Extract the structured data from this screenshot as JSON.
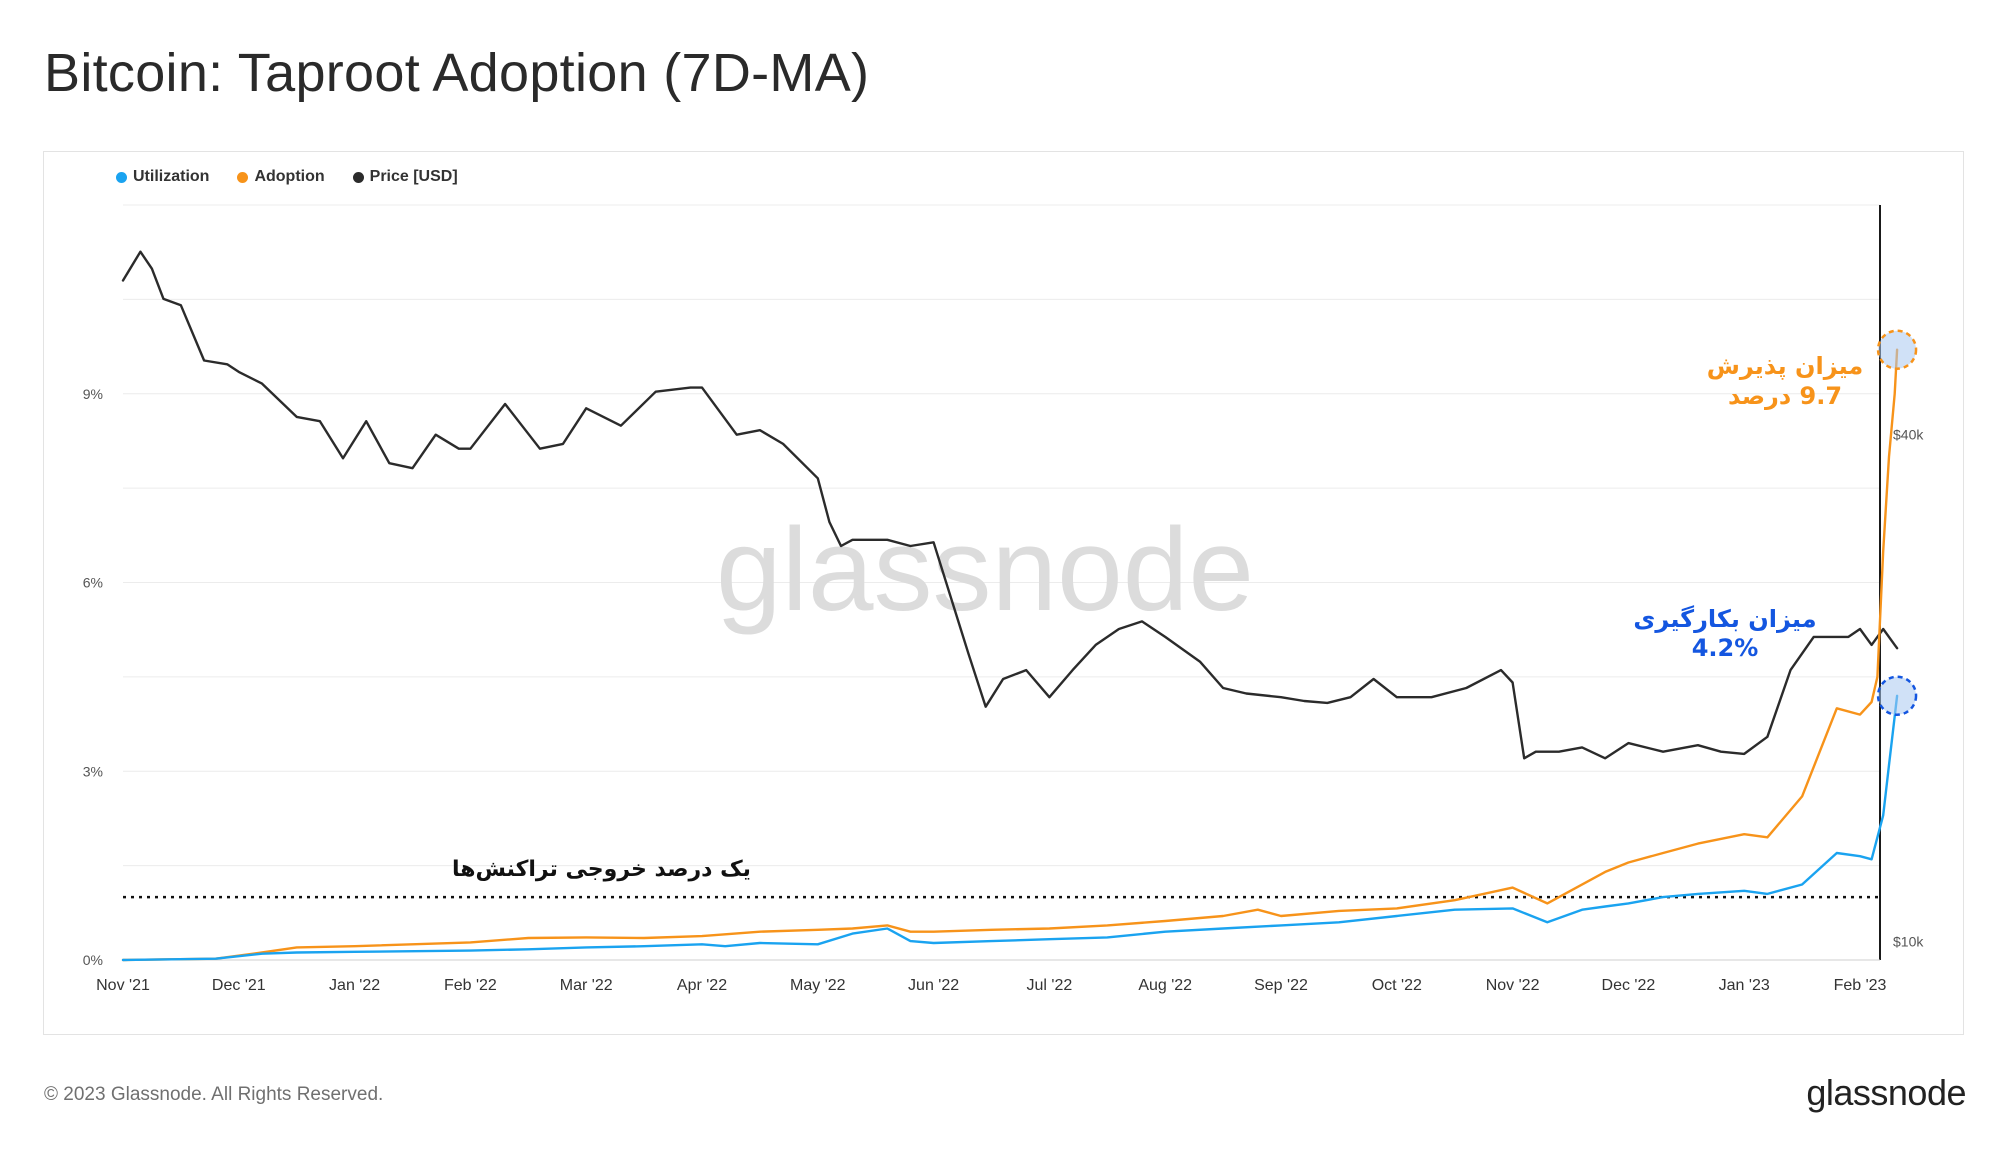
{
  "title": "Bitcoin: Taproot Adoption (7D-MA)",
  "footer": {
    "copyright": "© 2023 Glassnode. All Rights Reserved.",
    "logo": "glassnode"
  },
  "watermark": "glassnode",
  "colors": {
    "utilization": "#1aa3f0",
    "adoption": "#f7931a",
    "price": "#2b2b2b",
    "annotation_blue": "#1456e0"
  },
  "legend": [
    {
      "label": "Utilization",
      "color": "#1aa3f0"
    },
    {
      "label": "Adoption",
      "color": "#f7931a"
    },
    {
      "label": "Price [USD]",
      "color": "#2b2b2b"
    }
  ],
  "chart_data": {
    "type": "line",
    "title": "Bitcoin: Taproot Adoption (7D-MA)",
    "x_ticks": [
      "Nov '21",
      "Dec '21",
      "Jan '22",
      "Feb '22",
      "Mar '22",
      "Apr '22",
      "May '22",
      "Jun '22",
      "Jul '22",
      "Aug '22",
      "Sep '22",
      "Oct '22",
      "Nov '22",
      "Dec '22",
      "Jan '23",
      "Feb '23"
    ],
    "x_months": [
      0,
      1,
      2,
      3,
      4,
      5,
      6,
      7,
      8,
      9,
      10,
      11,
      12,
      13,
      14,
      15
    ],
    "y_left": {
      "label": "",
      "ticks": [
        "0%",
        "3%",
        "6%",
        "9%"
      ],
      "tick_values": [
        0,
        3,
        6,
        9
      ],
      "range": [
        0,
        12
      ]
    },
    "y_right": {
      "label": "",
      "scale": "log",
      "ticks": [
        "$10k",
        "$40k"
      ],
      "tick_values": [
        10000,
        40000
      ],
      "range": [
        9500,
        75000
      ]
    },
    "series": [
      {
        "name": "Utilization",
        "axis": "left",
        "unit": "%",
        "x": [
          0,
          0.8,
          1.2,
          1.5,
          2,
          3,
          3.5,
          4,
          4.5,
          5,
          5.2,
          5.5,
          6,
          6.3,
          6.6,
          6.8,
          7,
          7.5,
          8,
          8.5,
          9,
          9.5,
          10,
          10.5,
          11,
          11.5,
          12,
          12.3,
          12.6,
          12.8,
          13,
          13.3,
          13.6,
          14,
          14.2,
          14.5,
          14.8,
          15,
          15.1,
          15.2,
          15.25,
          15.32
        ],
        "values": [
          0.0,
          0.02,
          0.1,
          0.12,
          0.13,
          0.15,
          0.17,
          0.2,
          0.22,
          0.25,
          0.22,
          0.27,
          0.25,
          0.42,
          0.5,
          0.3,
          0.27,
          0.3,
          0.33,
          0.36,
          0.45,
          0.5,
          0.55,
          0.6,
          0.7,
          0.8,
          0.82,
          0.6,
          0.8,
          0.85,
          0.9,
          1.0,
          1.05,
          1.1,
          1.05,
          1.2,
          1.7,
          1.65,
          1.6,
          2.3,
          3.1,
          4.2
        ]
      },
      {
        "name": "Adoption",
        "axis": "left",
        "unit": "%",
        "x": [
          0,
          0.8,
          1.2,
          1.5,
          2,
          3,
          3.5,
          4,
          4.5,
          5,
          5.5,
          6,
          6.3,
          6.6,
          6.8,
          7,
          7.5,
          8,
          8.5,
          9,
          9.5,
          9.8,
          10,
          10.5,
          11,
          11.5,
          12,
          12.3,
          12.5,
          12.8,
          13,
          13.3,
          13.6,
          14,
          14.2,
          14.5,
          14.8,
          15,
          15.1,
          15.15,
          15.2,
          15.25,
          15.3,
          15.32
        ],
        "values": [
          0.0,
          0.02,
          0.12,
          0.2,
          0.22,
          0.28,
          0.35,
          0.36,
          0.35,
          0.38,
          0.45,
          0.48,
          0.5,
          0.55,
          0.45,
          0.45,
          0.48,
          0.5,
          0.55,
          0.62,
          0.7,
          0.8,
          0.7,
          0.78,
          0.82,
          0.95,
          1.15,
          0.9,
          1.1,
          1.4,
          1.55,
          1.7,
          1.85,
          2.0,
          1.95,
          2.6,
          4.0,
          3.9,
          4.1,
          4.5,
          6.5,
          8.0,
          9.0,
          9.7
        ]
      },
      {
        "name": "Price [USD]",
        "axis": "right",
        "unit": "USD",
        "x": [
          0,
          0.15,
          0.25,
          0.35,
          0.5,
          0.7,
          0.9,
          1.0,
          1.2,
          1.5,
          1.7,
          1.9,
          2.1,
          2.3,
          2.5,
          2.7,
          2.9,
          3.0,
          3.3,
          3.6,
          3.8,
          4.0,
          4.3,
          4.6,
          4.9,
          5.0,
          5.3,
          5.5,
          5.7,
          6.0,
          6.1,
          6.2,
          6.3,
          6.5,
          6.6,
          6.8,
          7.0,
          7.3,
          7.45,
          7.6,
          7.8,
          8.0,
          8.2,
          8.4,
          8.6,
          8.8,
          9.0,
          9.3,
          9.5,
          9.7,
          10.0,
          10.2,
          10.4,
          10.6,
          10.8,
          11.0,
          11.3,
          11.6,
          11.9,
          12.0,
          12.1,
          12.2,
          12.4,
          12.6,
          12.8,
          13.0,
          13.3,
          13.6,
          13.8,
          14.0,
          14.2,
          14.4,
          14.6,
          14.7,
          14.9,
          15.0,
          15.1,
          15.2,
          15.3,
          15.32
        ],
        "values": [
          61000,
          66000,
          63000,
          58000,
          57000,
          49000,
          48500,
          47500,
          46000,
          42000,
          41500,
          37500,
          41500,
          37000,
          36500,
          40000,
          38500,
          38500,
          43500,
          38500,
          39000,
          43000,
          41000,
          45000,
          45500,
          45500,
          40000,
          40500,
          39000,
          35500,
          31500,
          29500,
          30000,
          30000,
          30000,
          29500,
          29800,
          22000,
          19000,
          20500,
          21000,
          19500,
          21000,
          22500,
          23500,
          24000,
          23000,
          21500,
          20000,
          19700,
          19500,
          19300,
          19200,
          19500,
          20500,
          19500,
          19500,
          20000,
          21000,
          20300,
          16500,
          16800,
          16800,
          17000,
          16500,
          17200,
          16800,
          17100,
          16800,
          16700,
          17500,
          21000,
          23000,
          23000,
          23000,
          23500,
          22500,
          23500,
          22500,
          22300
        ]
      }
    ],
    "reference_line": {
      "value": 1,
      "axis": "left",
      "style": "dotted",
      "label": "یک درصد خروجی تراکنش‌ها"
    },
    "annotations": [
      {
        "series": "Adoption",
        "line1": "میزان پذیرش",
        "line2": "9.7 درصد"
      },
      {
        "series": "Utilization",
        "line1": "میزان بکارگیری",
        "line2": "4.2%"
      }
    ]
  }
}
